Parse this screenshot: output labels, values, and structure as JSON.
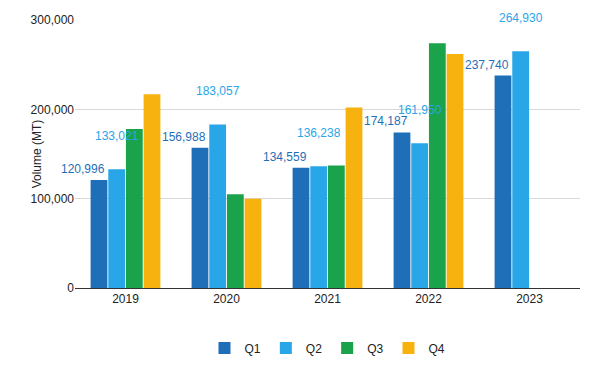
{
  "chart_data": {
    "type": "bar",
    "y_label": "Volume (MT)",
    "categories": [
      "2019",
      "2020",
      "2021",
      "2022",
      "2023"
    ],
    "series": [
      {
        "name": "Q1",
        "color": "#1f6fb8",
        "values": [
          120996,
          156988,
          134559,
          174187,
          237740
        ],
        "value_labels": [
          "120,996",
          "156,988",
          "134,559",
          "174,187",
          "237,740"
        ]
      },
      {
        "name": "Q2",
        "color": "#28a6e8",
        "values": [
          133021,
          183057,
          136238,
          161950,
          264930
        ],
        "value_labels": [
          "133,021",
          "183,057",
          "136,238",
          "161,950",
          "264,930"
        ]
      },
      {
        "name": "Q3",
        "color": "#1aa34a",
        "values": [
          178000,
          105000,
          137000,
          274000,
          null
        ]
      },
      {
        "name": "Q4",
        "color": "#f8b20f",
        "values": [
          217000,
          100000,
          202000,
          262000,
          null
        ]
      }
    ],
    "ylim": [
      0,
      300000
    ],
    "yticks": [
      0,
      {
        "value": 100000,
        "label": "100,000"
      },
      {
        "value": 200000,
        "label": "200,000"
      },
      {
        "value": 300000,
        "label": "300,000"
      }
    ],
    "grid": true,
    "legend": "bottom",
    "data_labels": true
  }
}
